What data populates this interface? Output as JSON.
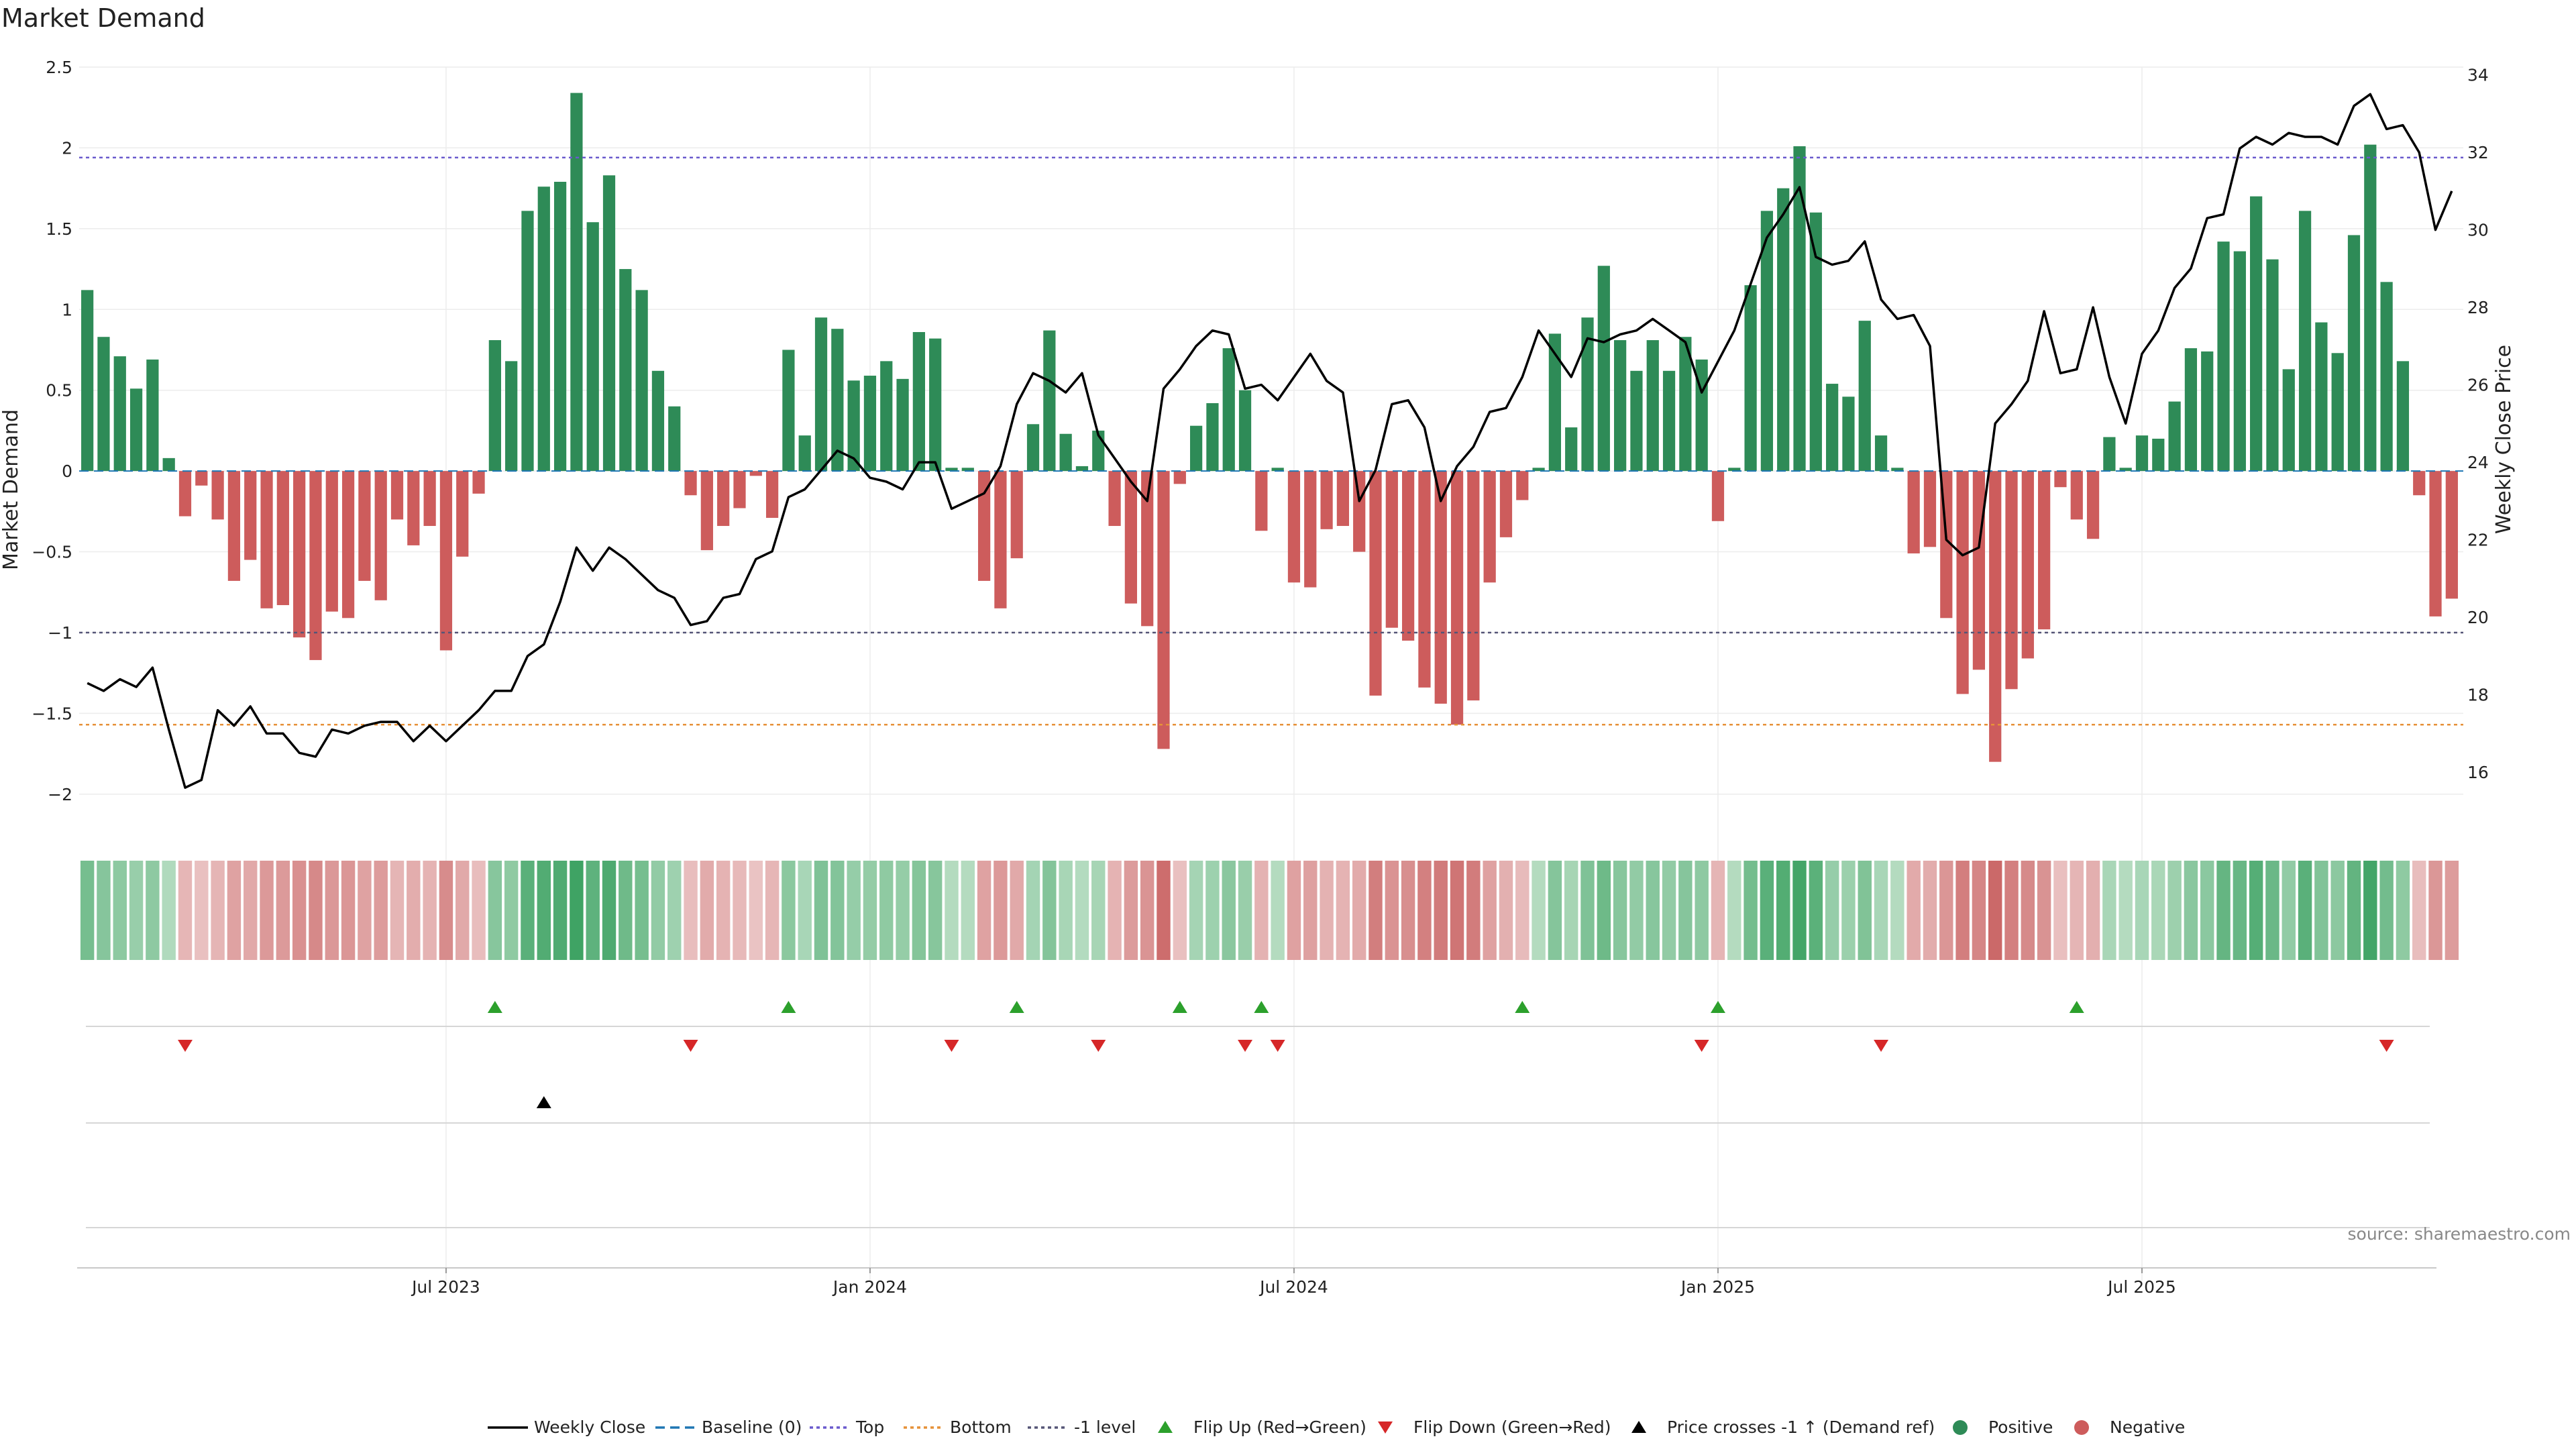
{
  "chart_data": {
    "type": "bar",
    "title": "Market Demand",
    "ylabel": "Market Demand",
    "y2label": "Weekly Close Price",
    "ylim": [
      -2.2,
      2.5
    ],
    "y2lim": [
      14.6,
      34.2
    ],
    "yticks": [
      "2.5",
      "2",
      "1.5",
      "1",
      "0.5",
      "0",
      "−0.5",
      "−1",
      "−1.5",
      "−2"
    ],
    "yticks_values": [
      2.5,
      2,
      1.5,
      1,
      0.5,
      0,
      -0.5,
      -1,
      -1.5,
      -2
    ],
    "y2ticks": [
      "34",
      "32",
      "30",
      "28",
      "26",
      "24",
      "22",
      "20",
      "18",
      "16"
    ],
    "y2ticks_values": [
      34,
      32,
      30,
      28,
      26,
      24,
      22,
      20,
      18,
      16
    ],
    "x_ticks": [
      {
        "label": "Jul 2023",
        "index": 22
      },
      {
        "label": "Jan 2024",
        "index": 48
      },
      {
        "label": "Jul 2024",
        "index": 74
      },
      {
        "label": "Jan 2025",
        "index": 100
      },
      {
        "label": "Jul 2025",
        "index": 126
      }
    ],
    "reference_lines": {
      "top": 1.94,
      "bottom": -1.57,
      "minus_one": -1.0,
      "baseline": 0
    },
    "demand": [
      1.12,
      0.83,
      0.71,
      0.51,
      0.69,
      0.08,
      -0.28,
      -0.09,
      -0.3,
      -0.68,
      -0.55,
      -0.85,
      -0.83,
      -1.03,
      -1.17,
      -0.87,
      -0.91,
      -0.68,
      -0.8,
      -0.3,
      -0.46,
      -0.34,
      -1.11,
      -0.53,
      -0.14,
      0.81,
      0.68,
      1.61,
      1.76,
      1.79,
      2.34,
      1.54,
      1.83,
      1.25,
      1.12,
      0.62,
      0.4,
      -0.15,
      -0.49,
      -0.34,
      -0.23,
      -0.03,
      -0.29,
      0.75,
      0.22,
      0.95,
      0.88,
      0.56,
      0.59,
      0.68,
      0.57,
      0.86,
      0.82,
      0.02,
      0.02,
      -0.68,
      -0.85,
      -0.54,
      0.29,
      0.87,
      0.23,
      0.03,
      0.25,
      -0.34,
      -0.82,
      -0.96,
      -1.72,
      -0.08,
      0.28,
      0.42,
      0.76,
      0.5,
      -0.37,
      0.02,
      -0.69,
      -0.72,
      -0.36,
      -0.34,
      -0.5,
      -1.39,
      -0.97,
      -1.05,
      -1.34,
      -1.44,
      -1.57,
      -1.42,
      -0.69,
      -0.41,
      -0.18,
      0.02,
      0.85,
      0.27,
      0.95,
      1.27,
      0.81,
      0.62,
      0.81,
      0.62,
      0.83,
      0.69,
      -0.31,
      0.02,
      1.15,
      1.61,
      1.75,
      2.01,
      1.6,
      0.54,
      0.46,
      0.93,
      0.22,
      0.02,
      -0.51,
      -0.47,
      -0.91,
      -1.38,
      -1.23,
      -1.8,
      -1.35,
      -1.16,
      -0.98,
      -0.1,
      -0.3,
      -0.42,
      0.21,
      0.02,
      0.22,
      0.2,
      0.43,
      0.76,
      0.74,
      1.42,
      1.36,
      1.7,
      1.31,
      0.63,
      1.61,
      0.92,
      0.73,
      1.46,
      2.02,
      1.17,
      0.68,
      -0.15,
      -0.9,
      -0.79
    ],
    "price": [
      18.3,
      18.1,
      18.4,
      18.2,
      18.7,
      17.1,
      15.6,
      15.8,
      17.6,
      17.2,
      17.7,
      17.0,
      17.0,
      16.5,
      16.4,
      17.1,
      17.0,
      17.2,
      17.3,
      17.3,
      16.8,
      17.2,
      16.8,
      17.2,
      17.6,
      18.1,
      18.1,
      19.0,
      19.3,
      20.4,
      21.8,
      21.2,
      21.8,
      21.5,
      21.1,
      20.7,
      20.5,
      19.8,
      19.9,
      20.5,
      20.6,
      21.5,
      21.7,
      23.1,
      23.3,
      23.8,
      24.3,
      24.1,
      23.6,
      23.5,
      23.3,
      24.0,
      24.0,
      22.8,
      23.0,
      23.2,
      23.9,
      25.5,
      26.3,
      26.1,
      25.8,
      26.3,
      24.7,
      24.1,
      23.5,
      23.0,
      25.9,
      26.4,
      27.0,
      27.4,
      27.3,
      25.9,
      26.0,
      25.6,
      26.2,
      26.8,
      26.1,
      25.8,
      23.0,
      23.8,
      25.5,
      25.6,
      24.9,
      23.0,
      23.9,
      24.4,
      25.3,
      25.4,
      26.2,
      27.4,
      26.8,
      26.2,
      27.2,
      27.1,
      27.3,
      27.4,
      27.7,
      27.4,
      27.1,
      25.8,
      26.6,
      27.4,
      28.6,
      29.8,
      30.4,
      31.1,
      29.3,
      29.1,
      29.2,
      29.7,
      28.2,
      27.7,
      27.8,
      27.0,
      22.0,
      21.6,
      21.8,
      25.0,
      25.5,
      26.1,
      27.9,
      26.3,
      26.4,
      28.0,
      26.2,
      25.0,
      26.8,
      27.4,
      28.5,
      29.0,
      30.3,
      30.4,
      32.1,
      32.4,
      32.2,
      32.5,
      32.4,
      32.4,
      32.2,
      33.2,
      33.5,
      32.6,
      32.7,
      32.0,
      30.0,
      31.0
    ],
    "heat_strip": "Demand intensity per week (green = positive, red = negative)",
    "flip_up_indices": [
      25,
      43,
      57,
      67,
      72,
      88,
      100,
      122
    ],
    "flip_down_indices": [
      6,
      37,
      53,
      62,
      71,
      73,
      99,
      110,
      141
    ],
    "price_cross_indices": [
      28
    ],
    "legend": [
      "Weekly Close",
      "Baseline (0)",
      "Top",
      "Bottom",
      "-1 level",
      "Flip Up (Red→Green)",
      "Flip Down (Green→Red)",
      "Price crosses -1 ↑ (Demand ref)",
      "Positive",
      "Negative"
    ],
    "source": "source: sharemaestro.com"
  },
  "colors": {
    "positive": "#2e8b57",
    "negative": "#cd5c5c",
    "price_line": "#000000",
    "baseline": "#1f77b4",
    "top": "#6a5acd",
    "bottom": "#e69138",
    "minus_one": "#555577",
    "flip_up": "#2ca02c",
    "flip_down": "#d62728",
    "grid": "#ececec"
  }
}
